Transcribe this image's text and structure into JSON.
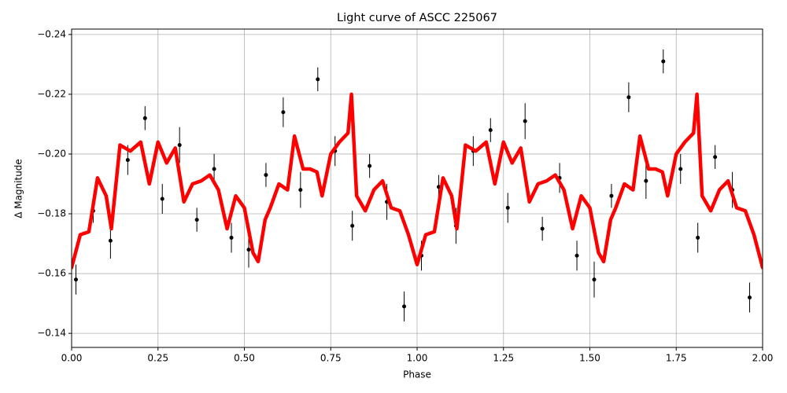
{
  "chart_data": [
    {
      "type": "errorbar-scatter",
      "title": "Light curve of ASCC 225067",
      "xlabel": "Phase",
      "ylabel": "Δ Magnitude",
      "xlim": [
        0,
        2
      ],
      "ylim": [
        -0.1353,
        -0.2418
      ],
      "invert_y": true,
      "grid": true,
      "color": "#000000",
      "xticks": [
        {
          "value": 0,
          "label": "0.00"
        },
        {
          "value": 0.25,
          "label": "0.25"
        },
        {
          "value": 0.5,
          "label": "0.50"
        },
        {
          "value": 0.75,
          "label": "0.75"
        },
        {
          "value": 1,
          "label": "1.00"
        },
        {
          "value": 1.25,
          "label": "1.25"
        },
        {
          "value": 1.5,
          "label": "1.50"
        },
        {
          "value": 1.75,
          "label": "1.75"
        },
        {
          "value": 2,
          "label": "2.00"
        }
      ],
      "yticks": [
        {
          "value": -0.24,
          "label": "−0.24"
        },
        {
          "value": -0.22,
          "label": "−0.22"
        },
        {
          "value": -0.2,
          "label": "−0.20"
        },
        {
          "value": -0.18,
          "label": "−0.18"
        },
        {
          "value": -0.16,
          "label": "−0.16"
        },
        {
          "value": -0.14,
          "label": "−0.14"
        }
      ],
      "x": [
        0.0125,
        0.0625,
        0.1125,
        0.1625,
        0.2125,
        0.2625,
        0.3125,
        0.3625,
        0.4125,
        0.4625,
        0.5125,
        0.5625,
        0.6125,
        0.6625,
        0.7125,
        0.7625,
        0.8125,
        0.8625,
        0.9125,
        0.9625,
        1.0125,
        1.0625,
        1.1125,
        1.1625,
        1.2125,
        1.2625,
        1.3125,
        1.3625,
        1.4125,
        1.4625,
        1.5125,
        1.5625,
        1.6125,
        1.6625,
        1.7125,
        1.7625,
        1.8125,
        1.8625,
        1.9125,
        1.9625
      ],
      "values": [
        -0.158,
        -0.181,
        -0.171,
        -0.198,
        -0.212,
        -0.185,
        -0.203,
        -0.178,
        -0.195,
        -0.172,
        -0.168,
        -0.193,
        -0.214,
        -0.188,
        -0.225,
        -0.201,
        -0.176,
        -0.196,
        -0.184,
        -0.149,
        -0.166,
        -0.189,
        -0.176,
        -0.201,
        -0.208,
        -0.182,
        -0.211,
        -0.175,
        -0.192,
        -0.166,
        -0.158,
        -0.186,
        -0.219,
        -0.191,
        -0.231,
        -0.195,
        -0.172,
        -0.199,
        -0.188,
        -0.152
      ],
      "errors": [
        0.005,
        0.004,
        0.006,
        0.005,
        0.004,
        0.005,
        0.006,
        0.004,
        0.005,
        0.005,
        0.006,
        0.004,
        0.005,
        0.006,
        0.004,
        0.005,
        0.005,
        0.004,
        0.006,
        0.005,
        0.005,
        0.004,
        0.006,
        0.005,
        0.004,
        0.005,
        0.006,
        0.004,
        0.005,
        0.005,
        0.006,
        0.004,
        0.005,
        0.006,
        0.004,
        0.005,
        0.005,
        0.004,
        0.006,
        0.005
      ]
    },
    {
      "type": "line",
      "color": "#ff0000",
      "x": [
        0,
        0.025,
        0.05,
        0.075,
        0.1,
        0.115,
        0.14,
        0.17,
        0.2,
        0.225,
        0.25,
        0.275,
        0.3,
        0.325,
        0.35,
        0.375,
        0.4,
        0.425,
        0.45,
        0.475,
        0.5,
        0.525,
        0.54,
        0.56,
        0.575,
        0.6,
        0.625,
        0.645,
        0.67,
        0.69,
        0.71,
        0.725,
        0.75,
        0.775,
        0.8,
        0.81,
        0.825,
        0.85,
        0.875,
        0.9,
        0.925,
        0.95,
        0.975,
        1.0,
        1.025,
        1.05,
        1.075,
        1.1,
        1.115,
        1.14,
        1.17,
        1.2,
        1.225,
        1.25,
        1.275,
        1.3,
        1.325,
        1.35,
        1.375,
        1.4,
        1.425,
        1.45,
        1.475,
        1.5,
        1.525,
        1.54,
        1.56,
        1.575,
        1.6,
        1.625,
        1.645,
        1.67,
        1.69,
        1.71,
        1.725,
        1.75,
        1.775,
        1.8,
        1.81,
        1.825,
        1.85,
        1.875,
        1.9,
        1.925,
        1.95,
        1.975,
        2.0
      ],
      "values": [
        -0.162,
        -0.173,
        -0.174,
        -0.192,
        -0.186,
        -0.175,
        -0.203,
        -0.201,
        -0.204,
        -0.19,
        -0.204,
        -0.197,
        -0.202,
        -0.184,
        -0.19,
        -0.191,
        -0.193,
        -0.188,
        -0.175,
        -0.186,
        -0.182,
        -0.167,
        -0.164,
        -0.178,
        -0.182,
        -0.19,
        -0.188,
        -0.206,
        -0.195,
        -0.195,
        -0.194,
        -0.186,
        -0.2,
        -0.204,
        -0.207,
        -0.22,
        -0.186,
        -0.181,
        -0.188,
        -0.191,
        -0.182,
        -0.181,
        -0.173,
        -0.163,
        -0.173,
        -0.174,
        -0.192,
        -0.186,
        -0.175,
        -0.203,
        -0.201,
        -0.204,
        -0.19,
        -0.204,
        -0.197,
        -0.202,
        -0.184,
        -0.19,
        -0.191,
        -0.193,
        -0.188,
        -0.175,
        -0.186,
        -0.182,
        -0.167,
        -0.164,
        -0.178,
        -0.182,
        -0.19,
        -0.188,
        -0.206,
        -0.195,
        -0.195,
        -0.194,
        -0.186,
        -0.2,
        -0.204,
        -0.207,
        -0.22,
        -0.186,
        -0.181,
        -0.188,
        -0.191,
        -0.182,
        -0.181,
        -0.173,
        -0.162
      ]
    }
  ]
}
